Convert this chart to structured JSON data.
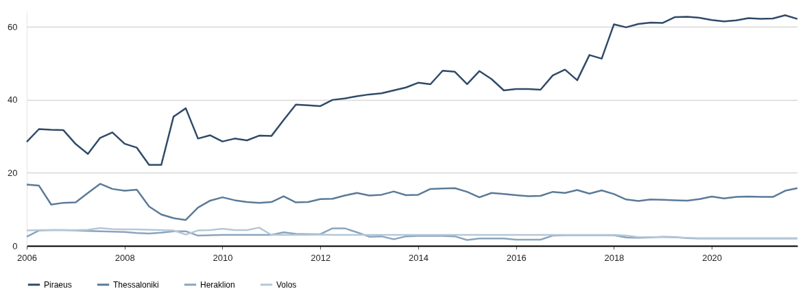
{
  "chart_data": {
    "type": "line",
    "xlim": [
      2006,
      2021.75
    ],
    "xticks": [
      2006,
      2008,
      2010,
      2012,
      2014,
      2016,
      2018,
      2020
    ],
    "ylim": [
      0,
      64
    ],
    "yticks": [
      0,
      20,
      40,
      60
    ],
    "grid": "y",
    "legend": "bottom",
    "marker": "none",
    "line_style": "solid",
    "x": [
      2006,
      2006.25,
      2006.5,
      2006.75,
      2007,
      2007.25,
      2007.5,
      2007.75,
      2008,
      2008.25,
      2008.5,
      2008.75,
      2009,
      2009.25,
      2009.5,
      2009.75,
      2010,
      2010.25,
      2010.5,
      2010.75,
      2011,
      2011.25,
      2011.5,
      2011.75,
      2012,
      2012.25,
      2012.5,
      2012.75,
      2013,
      2013.25,
      2013.5,
      2013.75,
      2014,
      2014.25,
      2014.5,
      2014.75,
      2015,
      2015.25,
      2015.5,
      2015.75,
      2016,
      2016.25,
      2016.5,
      2016.75,
      2017,
      2017.25,
      2017.5,
      2017.75,
      2018,
      2018.25,
      2018.5,
      2018.75,
      2019,
      2019.25,
      2019.5,
      2019.75,
      2020,
      2020.25,
      2020.5,
      2020.75,
      2021,
      2021.25,
      2021.5,
      2021.75
    ],
    "series": [
      {
        "name": "Piraeus",
        "color": "#2f4a68",
        "values": [
          28.5,
          32,
          31.8,
          31.7,
          27.9,
          25.2,
          29.6,
          31.1,
          28,
          26.9,
          22.2,
          22.2,
          35.4,
          37.7,
          29.4,
          30.3,
          28.6,
          29.4,
          28.9,
          30.2,
          30.1,
          34.5,
          38.7,
          38.5,
          38.3,
          40,
          40.4,
          41,
          41.5,
          41.8,
          42.6,
          43.4,
          44.7,
          44.3,
          48,
          47.7,
          44.3,
          47.9,
          45.7,
          42.6,
          43,
          43,
          42.8,
          46.7,
          48.3,
          45.4,
          52.3,
          51.3,
          60.7,
          59.9,
          60.8,
          61.2,
          61.1,
          62.7,
          62.8,
          62.5,
          61.9,
          61.5,
          61.8,
          62.4,
          62.2,
          62.3,
          63.2,
          62.2
        ]
      },
      {
        "name": "Thessaloniki",
        "color": "#5a7a98",
        "values": [
          16.8,
          16.5,
          11.3,
          11.8,
          11.9,
          14.5,
          17,
          15.6,
          15.1,
          15.4,
          10.8,
          8.6,
          7.6,
          7.1,
          10.5,
          12.4,
          13.3,
          12.5,
          12,
          11.8,
          12,
          13.6,
          11.9,
          12,
          12.8,
          12.9,
          13.8,
          14.5,
          13.8,
          14,
          14.9,
          13.9,
          14,
          15.6,
          15.7,
          15.8,
          14.8,
          13.3,
          14.5,
          14.2,
          13.9,
          13.6,
          13.7,
          14.8,
          14.5,
          15.3,
          14.3,
          15.2,
          14.2,
          12.7,
          12.3,
          12.7,
          12.6,
          12.5,
          12.4,
          12.8,
          13.5,
          13,
          13.4,
          13.5,
          13.4,
          13.4,
          15.1,
          15.8
        ]
      },
      {
        "name": "Heraklion",
        "color": "#8aa4bd",
        "values": [
          2.5,
          4.2,
          4.3,
          4.3,
          4.2,
          4.1,
          4,
          3.9,
          3.8,
          3.5,
          3.4,
          3.6,
          4,
          4,
          2.8,
          2.9,
          3,
          3,
          3,
          3,
          3,
          3.7,
          3.3,
          3.2,
          3.2,
          4.8,
          4.8,
          3.7,
          2.5,
          2.6,
          1.8,
          2.6,
          2.7,
          2.7,
          2.7,
          2.6,
          1.6,
          2,
          2,
          2,
          1.7,
          1.7,
          1.7,
          2.8,
          2.9,
          2.9,
          2.9,
          2.9,
          2.9,
          2.3,
          2.2,
          2.3,
          2.5,
          2.4,
          2.1,
          2,
          2,
          2,
          2,
          2,
          2,
          2,
          2,
          2
        ]
      },
      {
        "name": "Volos",
        "color": "#b5c7d8",
        "values": [
          4.2,
          4.3,
          4.3,
          4.3,
          4.3,
          4.4,
          4.9,
          4.6,
          4.5,
          4.5,
          4.4,
          4.3,
          4.2,
          3.1,
          4.2,
          4.3,
          4.7,
          4.3,
          4.3,
          5,
          3,
          3,
          3,
          3,
          3.1,
          3,
          3,
          3,
          3,
          3,
          3,
          3,
          3,
          3,
          3,
          3,
          3,
          3,
          3,
          3,
          3,
          3,
          3,
          3,
          3,
          3,
          3,
          3,
          3,
          2.8,
          2.4,
          2.4,
          2.4,
          2.3,
          2.2,
          2.1,
          2.1,
          2.1,
          2.1,
          2.1,
          2.1,
          2.1,
          2.1,
          2.1
        ]
      }
    ]
  }
}
